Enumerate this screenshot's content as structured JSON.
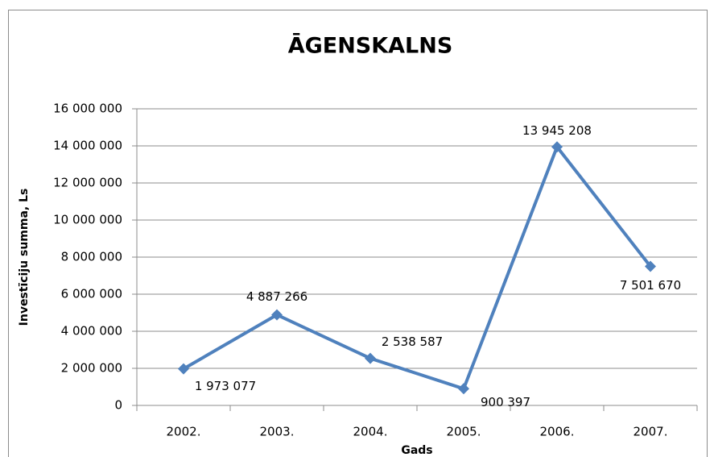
{
  "chart_data": {
    "type": "line",
    "title": "ĀGENSKALNS",
    "x_label": "Gads",
    "y_label": "Investīciju summa, Ls",
    "categories": [
      "2002.",
      "2003.",
      "2004.",
      "2005.",
      "2006.",
      "2007."
    ],
    "series": [
      {
        "name": "Āgenskalns",
        "color": "#4f81bd",
        "values": [
          1973077,
          4887266,
          2538587,
          900397,
          13945208,
          7501670
        ],
        "value_labels": [
          "1 973 077",
          "4 887 266",
          "2 538 587",
          "900 397",
          "13 945 208",
          "7 501 670"
        ]
      }
    ],
    "ylim": [
      0,
      16000000
    ],
    "yticks": [
      0,
      {
        "value": 2000000,
        "label": "2 000 000"
      },
      {
        "value": 4000000,
        "label": "4 000 000"
      },
      {
        "value": 6000000,
        "label": "6 000 000"
      },
      {
        "value": 8000000,
        "label": "8 000 000"
      },
      {
        "value": 10000000,
        "label": "10 000 000"
      },
      {
        "value": 12000000,
        "label": "12 000 000"
      },
      {
        "value": 14000000,
        "label": "14 000 000"
      },
      {
        "value": 16000000,
        "label": "16 000 000"
      }
    ],
    "grid": true
  }
}
